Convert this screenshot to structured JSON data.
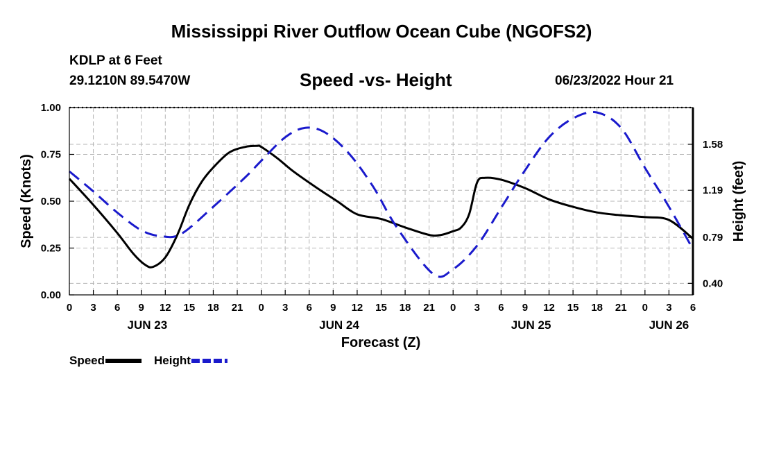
{
  "page": {
    "title": "Mississippi River Outflow Ocean Cube (NGOFS2)",
    "footer_title": "Mississippi River Outflow Ocean Cube (NGOFS2)",
    "station_name": "KDLP at 6 Feet",
    "station_coords": "29.1210N  89.5470W",
    "subtitle": "Speed -vs- Height",
    "forecast_date": "06/23/2022 Hour 21"
  },
  "chart_data": {
    "type": "line",
    "title": "Speed -vs- Height",
    "xlabel": "Forecast (Z)",
    "ylabel": "Speed (Knots)",
    "y2label": "Height (feet)",
    "xlim": [
      0,
      78
    ],
    "ylim": [
      0,
      1
    ],
    "y2lim": [
      0.302,
      1.892
    ],
    "x_ticks": [
      0,
      3,
      6,
      9,
      12,
      15,
      18,
      21,
      24,
      27,
      30,
      33,
      36,
      39,
      42,
      45,
      48,
      51,
      54,
      57,
      60,
      63,
      66,
      69,
      72,
      75,
      78
    ],
    "x_tick_labels": [
      "0",
      "3",
      "6",
      "9",
      "12",
      "15",
      "18",
      "21",
      "0",
      "3",
      "6",
      "9",
      "12",
      "15",
      "18",
      "21",
      "0",
      "3",
      "6",
      "9",
      "12",
      "15",
      "18",
      "21",
      "0",
      "3",
      "6"
    ],
    "date_labels": [
      {
        "x": 9.75,
        "label": "JUN 23"
      },
      {
        "x": 33.75,
        "label": "JUN 24"
      },
      {
        "x": 57.75,
        "label": "JUN 25"
      },
      {
        "x": 75,
        "label": "JUN 26"
      }
    ],
    "y_ticks": [
      0.0,
      0.25,
      0.5,
      0.75,
      1.0
    ],
    "y_tick_labels": [
      "0.00",
      "0.25",
      "0.50",
      "0.75",
      "1.00"
    ],
    "y2_ticks": [
      0.4,
      0.79,
      1.19,
      1.58
    ],
    "y2_tick_labels": [
      "0.40",
      "0.79",
      "1.19",
      "1.58"
    ],
    "grid": true,
    "legend": [
      {
        "name": "Speed",
        "color": "#000000",
        "style": "solid"
      },
      {
        "name": "Height",
        "color": "#1a1acc",
        "style": "dashed"
      }
    ],
    "series": [
      {
        "name": "Speed",
        "axis": "left",
        "color": "#000000",
        "style": "solid",
        "x": [
          0,
          3,
          6,
          8,
          9.5,
          10.5,
          12,
          13.5,
          15,
          16.5,
          18,
          20,
          22,
          23.5,
          24,
          26,
          28,
          31,
          33.5,
          36,
          39,
          42,
          45,
          46.5,
          48,
          49,
          50,
          51,
          52,
          54,
          57,
          60,
          63,
          66,
          69,
          72,
          75,
          78
        ],
        "values": [
          0.62,
          0.48,
          0.33,
          0.22,
          0.16,
          0.15,
          0.2,
          0.32,
          0.48,
          0.6,
          0.68,
          0.76,
          0.79,
          0.795,
          0.79,
          0.73,
          0.66,
          0.57,
          0.5,
          0.43,
          0.405,
          0.36,
          0.32,
          0.32,
          0.34,
          0.36,
          0.43,
          0.6,
          0.625,
          0.615,
          0.57,
          0.51,
          0.47,
          0.44,
          0.425,
          0.415,
          0.4,
          0.3
        ]
      },
      {
        "name": "Height",
        "axis": "right",
        "color": "#1a1acc",
        "style": "dashed",
        "x": [
          0,
          3,
          6,
          9,
          11.5,
          14,
          18,
          22,
          24,
          27,
          29.5,
          32,
          35,
          38,
          41,
          45.5,
          48,
          51,
          54,
          57,
          60,
          63,
          66,
          69,
          72,
          75,
          78
        ],
        "values": [
          1.35,
          1.18,
          1.0,
          0.85,
          0.8,
          0.82,
          1.05,
          1.3,
          1.44,
          1.64,
          1.72,
          1.68,
          1.5,
          1.22,
          0.87,
          0.48,
          0.52,
          0.72,
          1.04,
          1.36,
          1.64,
          1.8,
          1.85,
          1.72,
          1.38,
          1.05,
          0.69
        ]
      }
    ]
  }
}
